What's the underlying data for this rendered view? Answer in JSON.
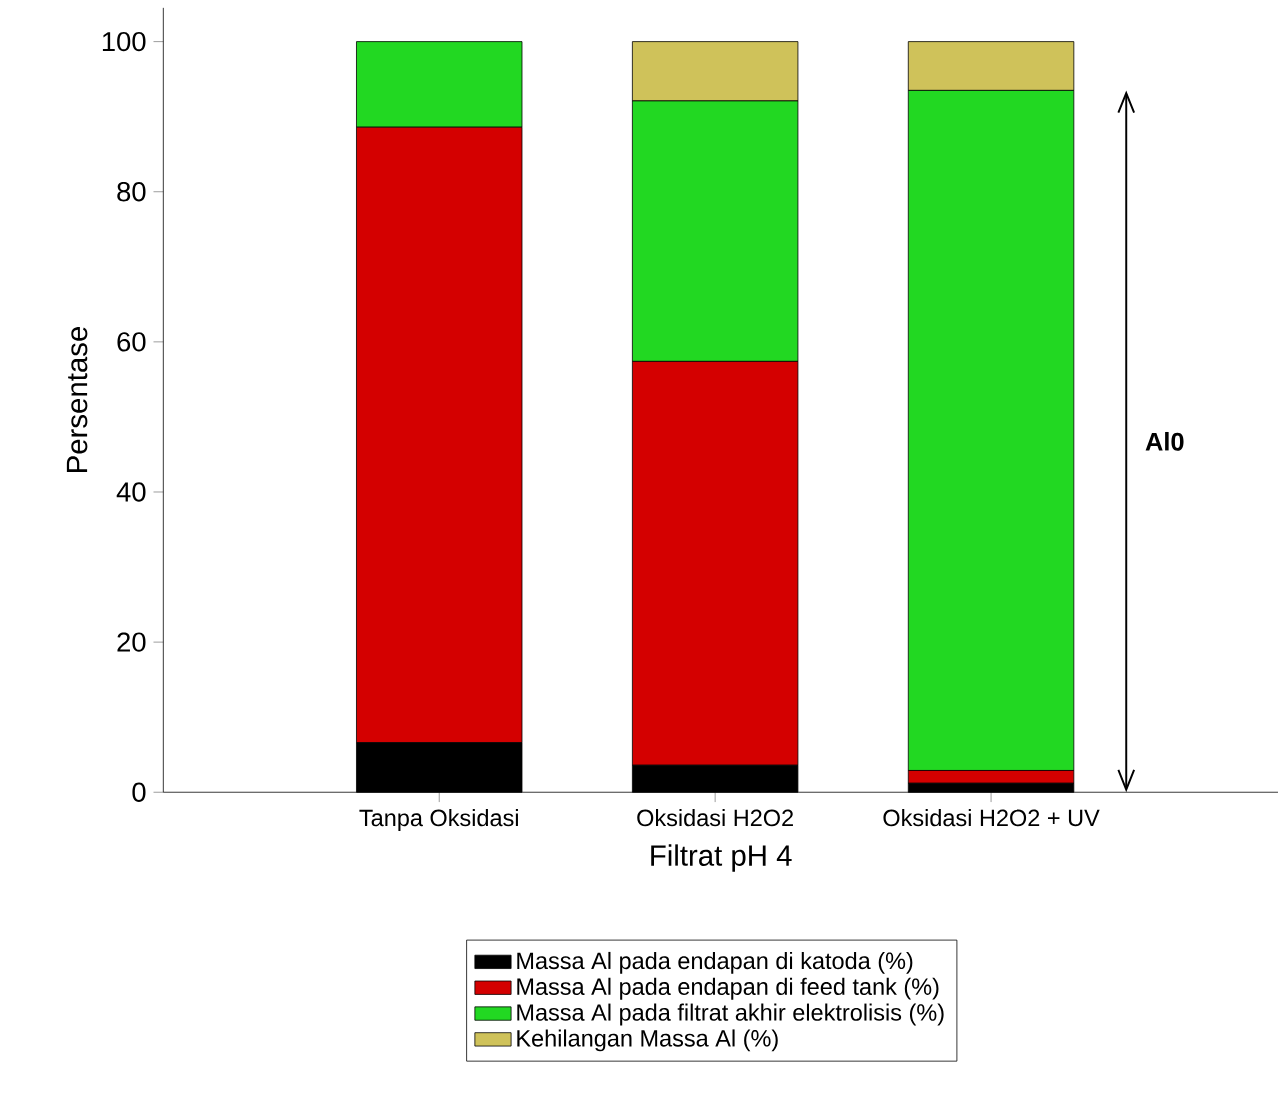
{
  "chart_data": {
    "type": "bar",
    "stacked": true,
    "xlabel": "Filtrat pH 4",
    "ylabel": "Persentase",
    "categories": [
      "Tanpa Oksidasi",
      "Oksidasi H2O2",
      "Oksidasi H2O2 + UV"
    ],
    "series": [
      {
        "name": "Massa Al pada endapan di katoda (%)",
        "color": "#000000",
        "values": [
          6.6,
          3.6,
          1.2
        ]
      },
      {
        "name": "Massa Al pada endapan di feed tank (%)",
        "color": "#d40000",
        "values": [
          82.0,
          53.8,
          1.7
        ]
      },
      {
        "name": "Massa Al pada filtrat akhir elektrolisis (%)",
        "color": "#22d822",
        "values": [
          11.4,
          34.7,
          90.6
        ]
      },
      {
        "name": "Kehilangan Massa Al (%)",
        "color": "#cfc25a",
        "values": [
          0,
          7.9,
          6.5
        ]
      }
    ],
    "ylim": [
      0,
      104.5
    ],
    "yticks": [
      0,
      20,
      40,
      60,
      80,
      100
    ],
    "legend": "bottom",
    "annotations": [
      "Al0"
    ]
  }
}
